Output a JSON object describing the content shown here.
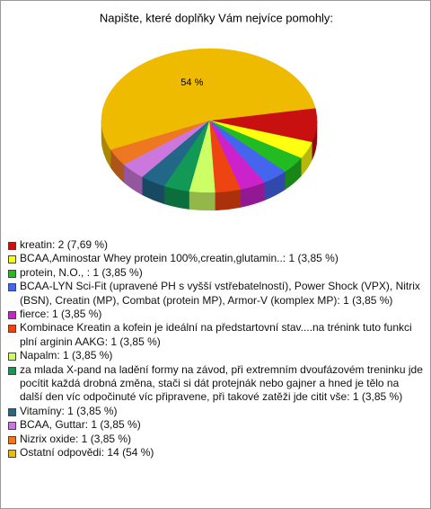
{
  "chart_data": {
    "type": "pie",
    "title": "Napište, které doplňky Vám nejvíce pomohly:",
    "categories": [
      "kreatin: 2 (7,69 %)",
      "BCAA,Aminostar Whey protein 100%,creatin,glutamin..: 1 (3,85 %)",
      "protein, N.O., : 1 (3,85 %)",
      "BCAA-LYN Sci-Fit (upravené PH s vyšší vstřebatelností), Power Shock (VPX), Nitrix (BSN), Creatin  (MP), Combat (protein MP), Armor-V (komplex MP): 1 (3,85 %)",
      "fierce: 1 (3,85 %)",
      "Kombinace Kreatin a kofein je ideální na předstartovní stav....na trénink tuto funkci plní arginin AAKG: 1 (3,85 %)",
      "Napalm: 1 (3,85 %)",
      "za mlada X-pand na ladění formy na závod, při extremním dvoufázovém treninku jde pocítit každá drobná změna, stači si dát protejnák nebo gajner a hned je tělo na další den víc odpočinuté víc připravene, při takové zatěži jde citit vše: 1 (3,85 %)",
      "Vitamíny: 1 (3,85 %)",
      "BCAA, Guttar: 1 (3,85 %)",
      "Nizrix oxide: 1 (3,85 %)",
      "Ostatní odpovědi: 14 (54 %)"
    ],
    "values": [
      7.69,
      3.85,
      3.85,
      3.85,
      3.85,
      3.85,
      3.85,
      3.85,
      3.85,
      3.85,
      3.85,
      53.85
    ],
    "value_labels": [
      null,
      null,
      null,
      null,
      null,
      null,
      null,
      null,
      null,
      null,
      null,
      "54 %"
    ],
    "colors": [
      "#c81010",
      "#ffff10",
      "#22bb22",
      "#4466ee",
      "#cc22cc",
      "#ee4411",
      "#ccff66",
      "#119955",
      "#226688",
      "#cc77dd",
      "#ee7722",
      "#eebb00"
    ]
  }
}
